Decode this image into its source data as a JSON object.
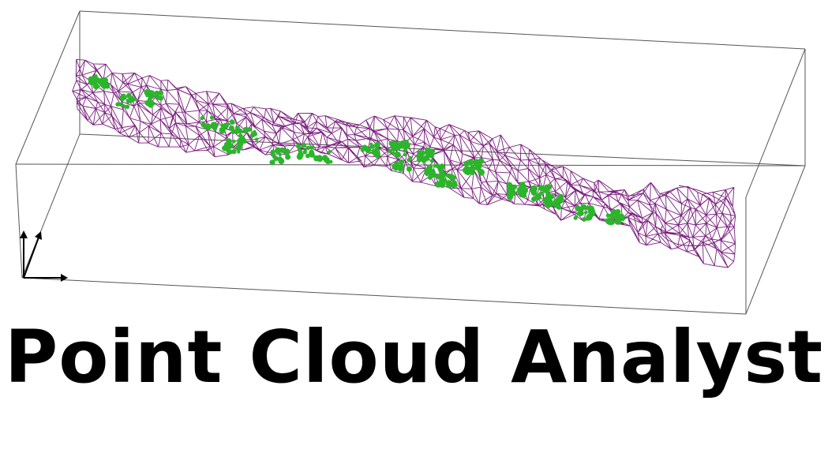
{
  "app": {
    "title": "Point Cloud Analyst"
  },
  "scene": {
    "view": "3d-perspective-bounding-box",
    "axes_widget": "xyz-axes-icon",
    "layers": [
      {
        "name": "surface-mesh",
        "style": "wireframe",
        "color": "#7a1e7e"
      },
      {
        "name": "detected-clusters",
        "style": "points",
        "color": "#2bb52b"
      }
    ],
    "bounding_box_color": "#555555"
  },
  "colors": {
    "title": "#000000",
    "background": "#ffffff"
  }
}
